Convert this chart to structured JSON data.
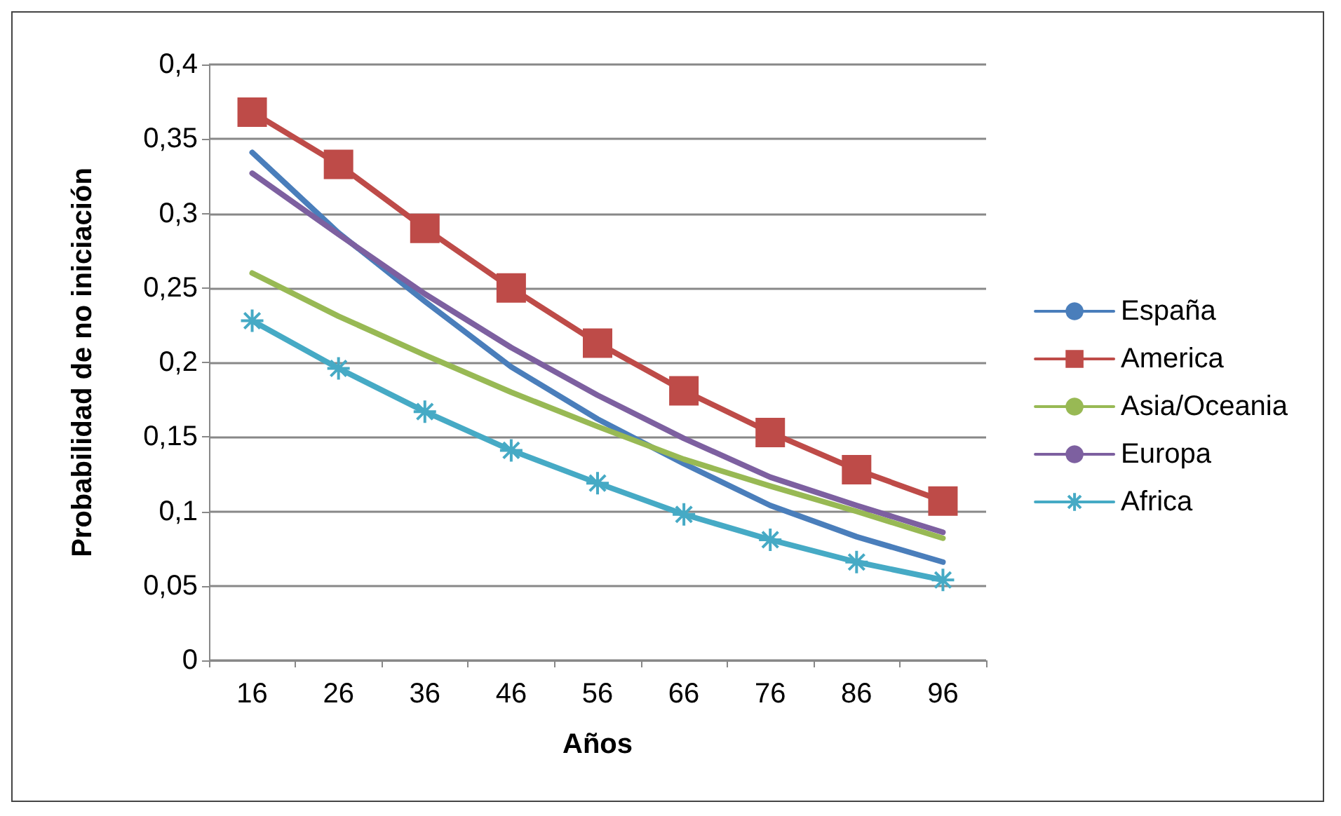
{
  "chart_data": {
    "type": "line",
    "xlabel": "Años",
    "ylabel": "Probabilidad de no iniciación",
    "categories": [
      "16",
      "26",
      "36",
      "46",
      "56",
      "66",
      "76",
      "86",
      "96"
    ],
    "ylim": [
      0,
      0.4
    ],
    "yticks": [
      {
        "value": 0,
        "label": "0"
      },
      {
        "value": 0.05,
        "label": "0,05"
      },
      {
        "value": 0.1,
        "label": "0,1"
      },
      {
        "value": 0.15,
        "label": "0,15"
      },
      {
        "value": 0.2,
        "label": "0,2"
      },
      {
        "value": 0.25,
        "label": "0,25"
      },
      {
        "value": 0.3,
        "label": "0,3"
      },
      {
        "value": 0.35,
        "label": "0,35"
      },
      {
        "value": 0.4,
        "label": "0,4"
      }
    ],
    "grid": "y",
    "legend": "right",
    "line_style": "solid",
    "series": [
      {
        "name": "España",
        "color": "#4a7ebb",
        "marker": "none",
        "values": [
          0.341,
          0.287,
          0.241,
          0.197,
          0.162,
          0.132,
          0.104,
          0.083,
          0.066
        ]
      },
      {
        "name": "America",
        "color": "#be4b48",
        "marker": "square",
        "values": [
          0.368,
          0.333,
          0.29,
          0.25,
          0.213,
          0.181,
          0.153,
          0.128,
          0.107
        ]
      },
      {
        "name": "Asia/Oceania",
        "color": "#98b954",
        "marker": "none",
        "values": [
          0.26,
          0.231,
          0.205,
          0.18,
          0.157,
          0.135,
          0.117,
          0.1,
          0.082
        ]
      },
      {
        "name": "Europa",
        "color": "#7d60a0",
        "marker": "none",
        "values": [
          0.327,
          0.286,
          0.246,
          0.21,
          0.178,
          0.149,
          0.123,
          0.104,
          0.086
        ]
      },
      {
        "name": "Africa",
        "color": "#46aac5",
        "marker": "cross",
        "values": [
          0.228,
          0.196,
          0.167,
          0.141,
          0.119,
          0.098,
          0.081,
          0.066,
          0.054
        ]
      }
    ]
  }
}
